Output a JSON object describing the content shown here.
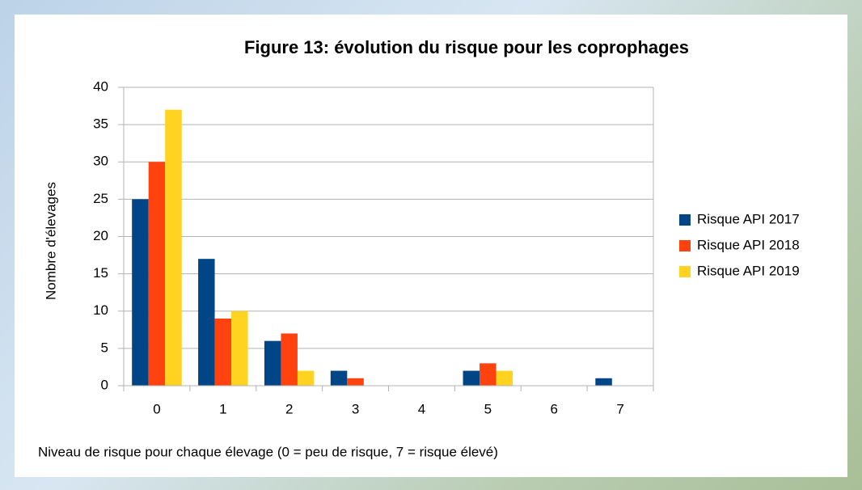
{
  "chart_data": {
    "type": "bar",
    "title": "Figure 13: évolution du risque pour les coprophages",
    "x_label": "Niveau de risque pour chaque élevage (0 = peu de risque, 7 = risque élevé)",
    "y_label": "Nombre d'élevages",
    "categories": [
      "0",
      "1",
      "2",
      "3",
      "4",
      "5",
      "6",
      "7"
    ],
    "series": [
      {
        "name": "Risque API 2017",
        "color": "#004586",
        "values": [
          25,
          17,
          6,
          2,
          0,
          2,
          0,
          1
        ]
      },
      {
        "name": "Risque API 2018",
        "color": "#ff420e",
        "values": [
          30,
          9,
          7,
          1,
          0,
          3,
          0,
          0
        ]
      },
      {
        "name": "Risque API 2019",
        "color": "#ffd320",
        "values": [
          37,
          10,
          2,
          0,
          0,
          2,
          0,
          0
        ]
      }
    ],
    "ylim": [
      0,
      40
    ],
    "yticks": [
      0,
      5,
      10,
      15,
      20,
      25,
      30,
      35,
      40
    ],
    "grid": true,
    "legend": "right"
  }
}
